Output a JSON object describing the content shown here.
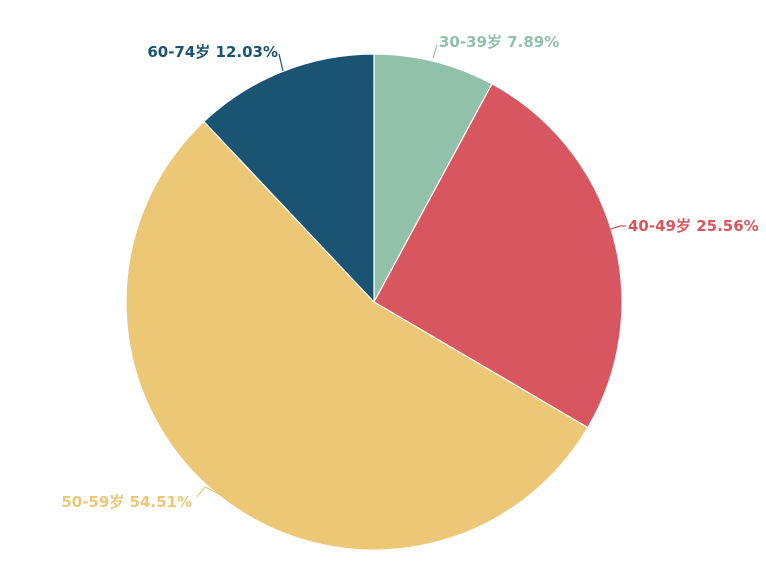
{
  "chart_data": {
    "type": "pie",
    "title": "",
    "start_angle_deg": -90,
    "direction": "clockwise",
    "slices": [
      {
        "category": "30-39岁",
        "value": 7.89,
        "label": "7.89%",
        "color": "#91c1a8"
      },
      {
        "category": "40-49岁",
        "value": 25.56,
        "label": "25.56%",
        "color": "#d8565f"
      },
      {
        "category": "50-59岁",
        "value": 54.51,
        "label": "54.51%",
        "color": "#ecc776"
      },
      {
        "category": "60-74岁",
        "value": 12.03,
        "label": "12.03%",
        "color": "#1b5373"
      }
    ],
    "label_format": "{category} {label}"
  }
}
